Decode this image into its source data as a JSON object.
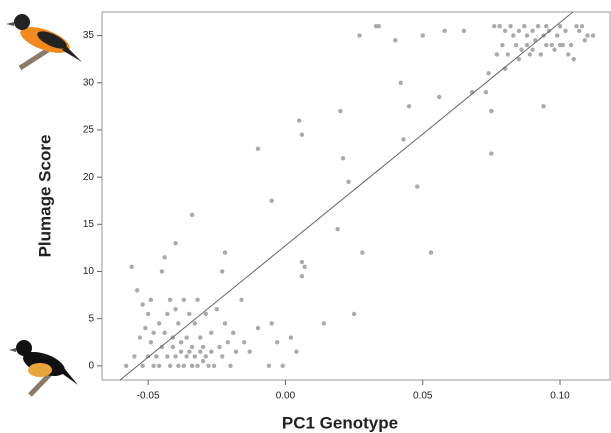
{
  "chart_data": {
    "type": "scatter",
    "x_label": "PC1 Genotype",
    "y_label": "Plumage Score",
    "xlim": [
      -0.0668,
      0.1182
    ],
    "ylim": [
      -1.5,
      37.5
    ],
    "xticks": [
      -0.05,
      {
        "value": 0,
        "label": "0.00"
      },
      0.05,
      {
        "value": 0.1,
        "label": "0.10"
      }
    ],
    "yticks": [
      0,
      5,
      10,
      15,
      20,
      25,
      30,
      35
    ],
    "color": "#aaaaaa",
    "trend_color": "#666666",
    "trendline": {
      "x": [
        -0.0602,
        0.1047
      ],
      "y": [
        -1.5,
        37.5
      ]
    },
    "x": [
      -0.058,
      -0.056,
      -0.055,
      -0.054,
      -0.053,
      -0.052,
      -0.052,
      -0.051,
      -0.05,
      -0.05,
      -0.049,
      -0.049,
      -0.048,
      -0.048,
      -0.047,
      -0.046,
      -0.046,
      -0.045,
      -0.045,
      -0.044,
      -0.044,
      -0.043,
      -0.043,
      -0.042,
      -0.042,
      -0.041,
      -0.041,
      -0.04,
      -0.04,
      -0.04,
      -0.039,
      -0.039,
      -0.038,
      -0.038,
      -0.037,
      -0.037,
      -0.036,
      -0.036,
      -0.035,
      -0.035,
      -0.034,
      -0.034,
      -0.034,
      -0.033,
      -0.033,
      -0.032,
      -0.032,
      -0.031,
      -0.031,
      -0.03,
      -0.03,
      -0.029,
      -0.029,
      -0.028,
      -0.027,
      -0.027,
      -0.026,
      -0.025,
      -0.024,
      -0.023,
      -0.023,
      -0.022,
      -0.022,
      -0.021,
      -0.02,
      -0.019,
      -0.018,
      -0.016,
      -0.015,
      -0.013,
      -0.01,
      -0.01,
      -0.005,
      -0.006,
      -0.005,
      -0.003,
      -0.001,
      0.002,
      0.004,
      0.005,
      0.006,
      0.006,
      0.006,
      0.007,
      0.014,
      0.019,
      0.02,
      0.021,
      0.023,
      0.025,
      0.027,
      0.028,
      0.033,
      0.034,
      0.04,
      0.042,
      0.043,
      0.045,
      0.048,
      0.05,
      0.053,
      0.056,
      0.058,
      0.065,
      0.068,
      0.073,
      0.074,
      0.075,
      0.075,
      0.076,
      0.077,
      0.078,
      0.079,
      0.08,
      0.08,
      0.081,
      0.082,
      0.083,
      0.084,
      0.085,
      0.085,
      0.086,
      0.087,
      0.088,
      0.088,
      0.089,
      0.09,
      0.09,
      0.091,
      0.092,
      0.093,
      0.094,
      0.094,
      0.095,
      0.095,
      0.096,
      0.097,
      0.098,
      0.099,
      0.1,
      0.1,
      0.101,
      0.102,
      0.103,
      0.104,
      0.105,
      0.106,
      0.107,
      0.108,
      0.109,
      0.11,
      0.112
    ],
    "y": [
      0,
      10.5,
      1,
      8,
      3,
      6.5,
      0,
      4,
      1,
      5.5,
      7,
      2.5,
      0,
      3.5,
      1,
      4.5,
      0,
      2,
      10,
      3.5,
      11.5,
      1,
      5.5,
      0,
      7,
      2,
      3,
      13,
      1,
      6,
      0,
      4.5,
      1.5,
      2.5,
      0,
      7,
      1,
      3,
      1.5,
      5.5,
      16,
      0,
      2,
      1,
      4.5,
      7,
      0,
      1.5,
      3,
      0.5,
      2,
      5.5,
      1,
      0,
      1.5,
      3.5,
      0,
      6,
      2,
      10,
      1,
      12,
      4.5,
      2.5,
      0,
      3.5,
      1.5,
      7,
      2.5,
      1.5,
      23,
      4,
      17.5,
      0,
      4.5,
      2.5,
      0,
      3,
      1.5,
      26,
      24.5,
      11,
      9.5,
      10.5,
      4.5,
      14.5,
      27,
      22,
      19.5,
      5.5,
      35,
      12,
      36,
      36,
      34.5,
      30,
      24,
      27.5,
      19,
      35,
      12,
      28.5,
      35.5,
      35.5,
      29,
      29,
      31,
      22.5,
      27,
      36,
      33,
      36,
      34,
      31.5,
      35.5,
      33,
      36,
      35,
      34,
      32.5,
      35.5,
      33.5,
      36,
      35,
      34,
      33,
      35.5,
      33.5,
      34.5,
      36,
      33,
      35,
      27.5,
      34,
      36,
      35.5,
      34,
      33.5,
      35,
      36,
      34,
      34,
      35.5,
      33,
      34,
      32.5,
      36,
      35.5,
      36,
      34.5,
      35,
      35
    ]
  }
}
